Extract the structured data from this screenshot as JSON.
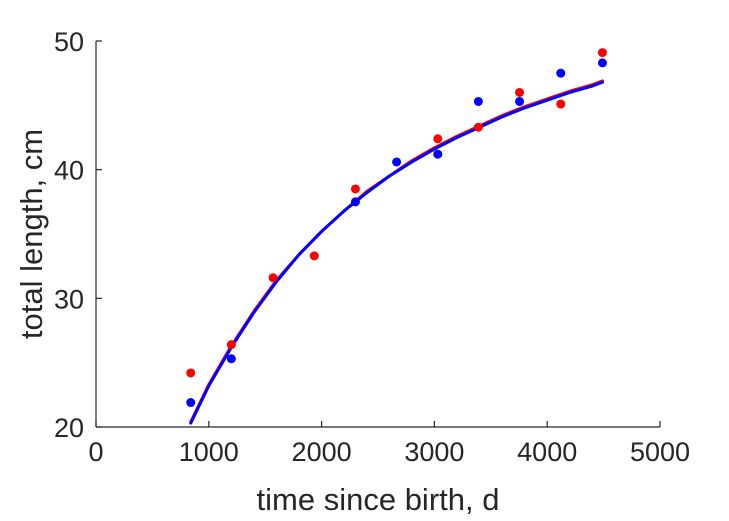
{
  "chart_data": {
    "type": "scatter",
    "title": "",
    "xlabel": "time since birth, d",
    "ylabel": "total length, cm",
    "xlim": [
      0,
      5000
    ],
    "ylim": [
      20,
      50
    ],
    "grid": false,
    "legend": "none",
    "x_ticks": [
      0,
      1000,
      2000,
      3000,
      4000,
      5000
    ],
    "y_ticks": [
      20,
      30,
      40,
      50
    ],
    "x_tick_labels": [
      "0",
      "1000",
      "2000",
      "3000",
      "4000",
      "5000"
    ],
    "y_tick_labels": [
      "20",
      "30",
      "40",
      "50"
    ],
    "series": [
      {
        "kind": "points",
        "color": "#ff0000",
        "points": [
          {
            "x": 840,
            "y": 24.2
          },
          {
            "x": 1200,
            "y": 26.4
          },
          {
            "x": 1570,
            "y": 31.6
          },
          {
            "x": 1935,
            "y": 33.3
          },
          {
            "x": 2300,
            "y": 38.5
          },
          {
            "x": 3030,
            "y": 42.4
          },
          {
            "x": 3390,
            "y": 43.3
          },
          {
            "x": 3755,
            "y": 46.0
          },
          {
            "x": 4120,
            "y": 45.1
          },
          {
            "x": 4490,
            "y": 49.1
          }
        ]
      },
      {
        "kind": "points",
        "color": "#0000ff",
        "points": [
          {
            "x": 840,
            "y": 21.9
          },
          {
            "x": 1200,
            "y": 25.3
          },
          {
            "x": 2300,
            "y": 37.5
          },
          {
            "x": 2665,
            "y": 40.6
          },
          {
            "x": 3030,
            "y": 41.2
          },
          {
            "x": 3390,
            "y": 45.3
          },
          {
            "x": 3755,
            "y": 45.3
          },
          {
            "x": 4120,
            "y": 47.5
          },
          {
            "x": 4490,
            "y": 48.3
          }
        ]
      },
      {
        "kind": "curve",
        "color": "#ff0000",
        "points": [
          {
            "x": 840,
            "y": 20.4
          },
          {
            "x": 1000,
            "y": 23.3
          },
          {
            "x": 1200,
            "y": 26.3
          },
          {
            "x": 1400,
            "y": 29.0
          },
          {
            "x": 1600,
            "y": 31.4
          },
          {
            "x": 1800,
            "y": 33.4
          },
          {
            "x": 2000,
            "y": 35.2
          },
          {
            "x": 2200,
            "y": 36.8
          },
          {
            "x": 2400,
            "y": 38.3
          },
          {
            "x": 2600,
            "y": 39.5
          },
          {
            "x": 2800,
            "y": 40.7
          },
          {
            "x": 3000,
            "y": 41.7
          },
          {
            "x": 3200,
            "y": 42.6
          },
          {
            "x": 3400,
            "y": 43.4
          },
          {
            "x": 3600,
            "y": 44.2
          },
          {
            "x": 3800,
            "y": 44.9
          },
          {
            "x": 4000,
            "y": 45.5
          },
          {
            "x": 4200,
            "y": 46.1
          },
          {
            "x": 4400,
            "y": 46.6
          },
          {
            "x": 4490,
            "y": 46.9
          }
        ]
      },
      {
        "kind": "curve",
        "color": "#0000ff",
        "points": [
          {
            "x": 840,
            "y": 20.3
          },
          {
            "x": 1000,
            "y": 23.2
          },
          {
            "x": 1200,
            "y": 26.2
          },
          {
            "x": 1400,
            "y": 28.9
          },
          {
            "x": 1600,
            "y": 31.3
          },
          {
            "x": 1800,
            "y": 33.4
          },
          {
            "x": 2000,
            "y": 35.2
          },
          {
            "x": 2200,
            "y": 36.8
          },
          {
            "x": 2400,
            "y": 38.2
          },
          {
            "x": 2600,
            "y": 39.5
          },
          {
            "x": 2800,
            "y": 40.6
          },
          {
            "x": 3000,
            "y": 41.6
          },
          {
            "x": 3200,
            "y": 42.5
          },
          {
            "x": 3400,
            "y": 43.3
          },
          {
            "x": 3600,
            "y": 44.1
          },
          {
            "x": 3800,
            "y": 44.8
          },
          {
            "x": 4000,
            "y": 45.4
          },
          {
            "x": 4200,
            "y": 46.0
          },
          {
            "x": 4400,
            "y": 46.5
          },
          {
            "x": 4490,
            "y": 46.8
          }
        ]
      }
    ]
  }
}
